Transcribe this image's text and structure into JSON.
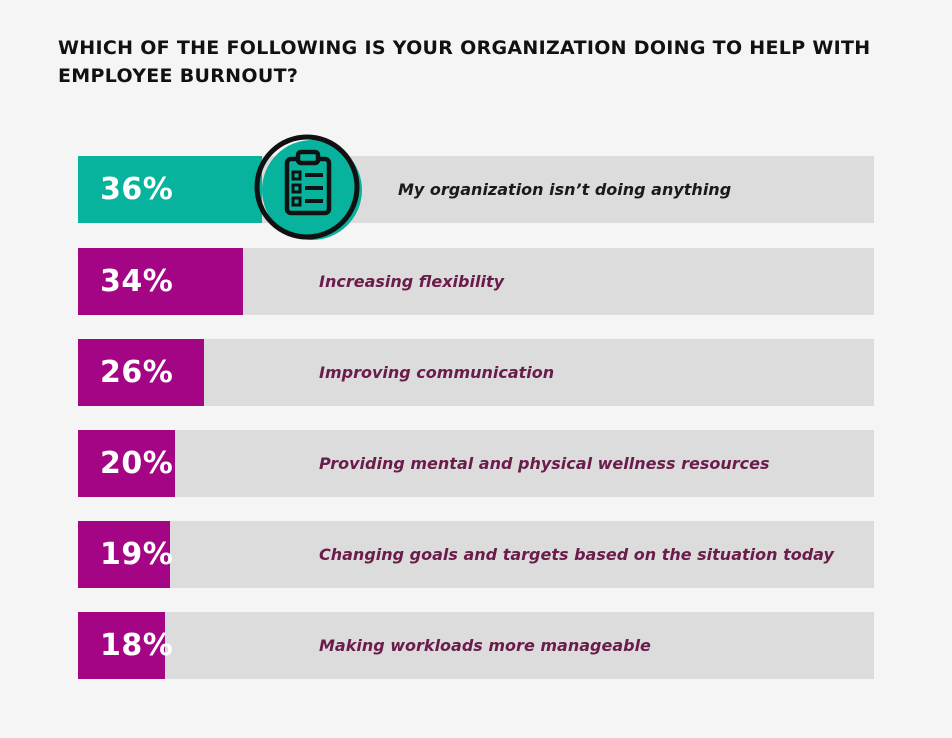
{
  "chart_data": {
    "type": "bar",
    "title": "WHICH OF THE FOLLOWING IS YOUR ORGANIZATION DOING TO HELP WITH EMPLOYEE BURNOUT?",
    "orientation": "horizontal",
    "xlim": [
      0,
      100
    ],
    "grid": false,
    "legend": "none",
    "categories": [
      "My organization isn’t doing anything",
      "Increasing flexibility",
      "Improving communication",
      "Providing mental and physical wellness resources",
      "Changing goals and targets based on the situation today",
      "Making workloads more manageable"
    ],
    "values": [
      36,
      34,
      26,
      20,
      19,
      18
    ],
    "labels": [
      "36%",
      "34%",
      "26%",
      "20%",
      "19%",
      "18%"
    ],
    "colors": {
      "highlight": "#08b39d",
      "bar": "#a30585",
      "track": "#dcdcdd",
      "background": "#f5f5f5"
    },
    "highlight_index": 0,
    "icon": "clipboard-checklist-icon"
  }
}
